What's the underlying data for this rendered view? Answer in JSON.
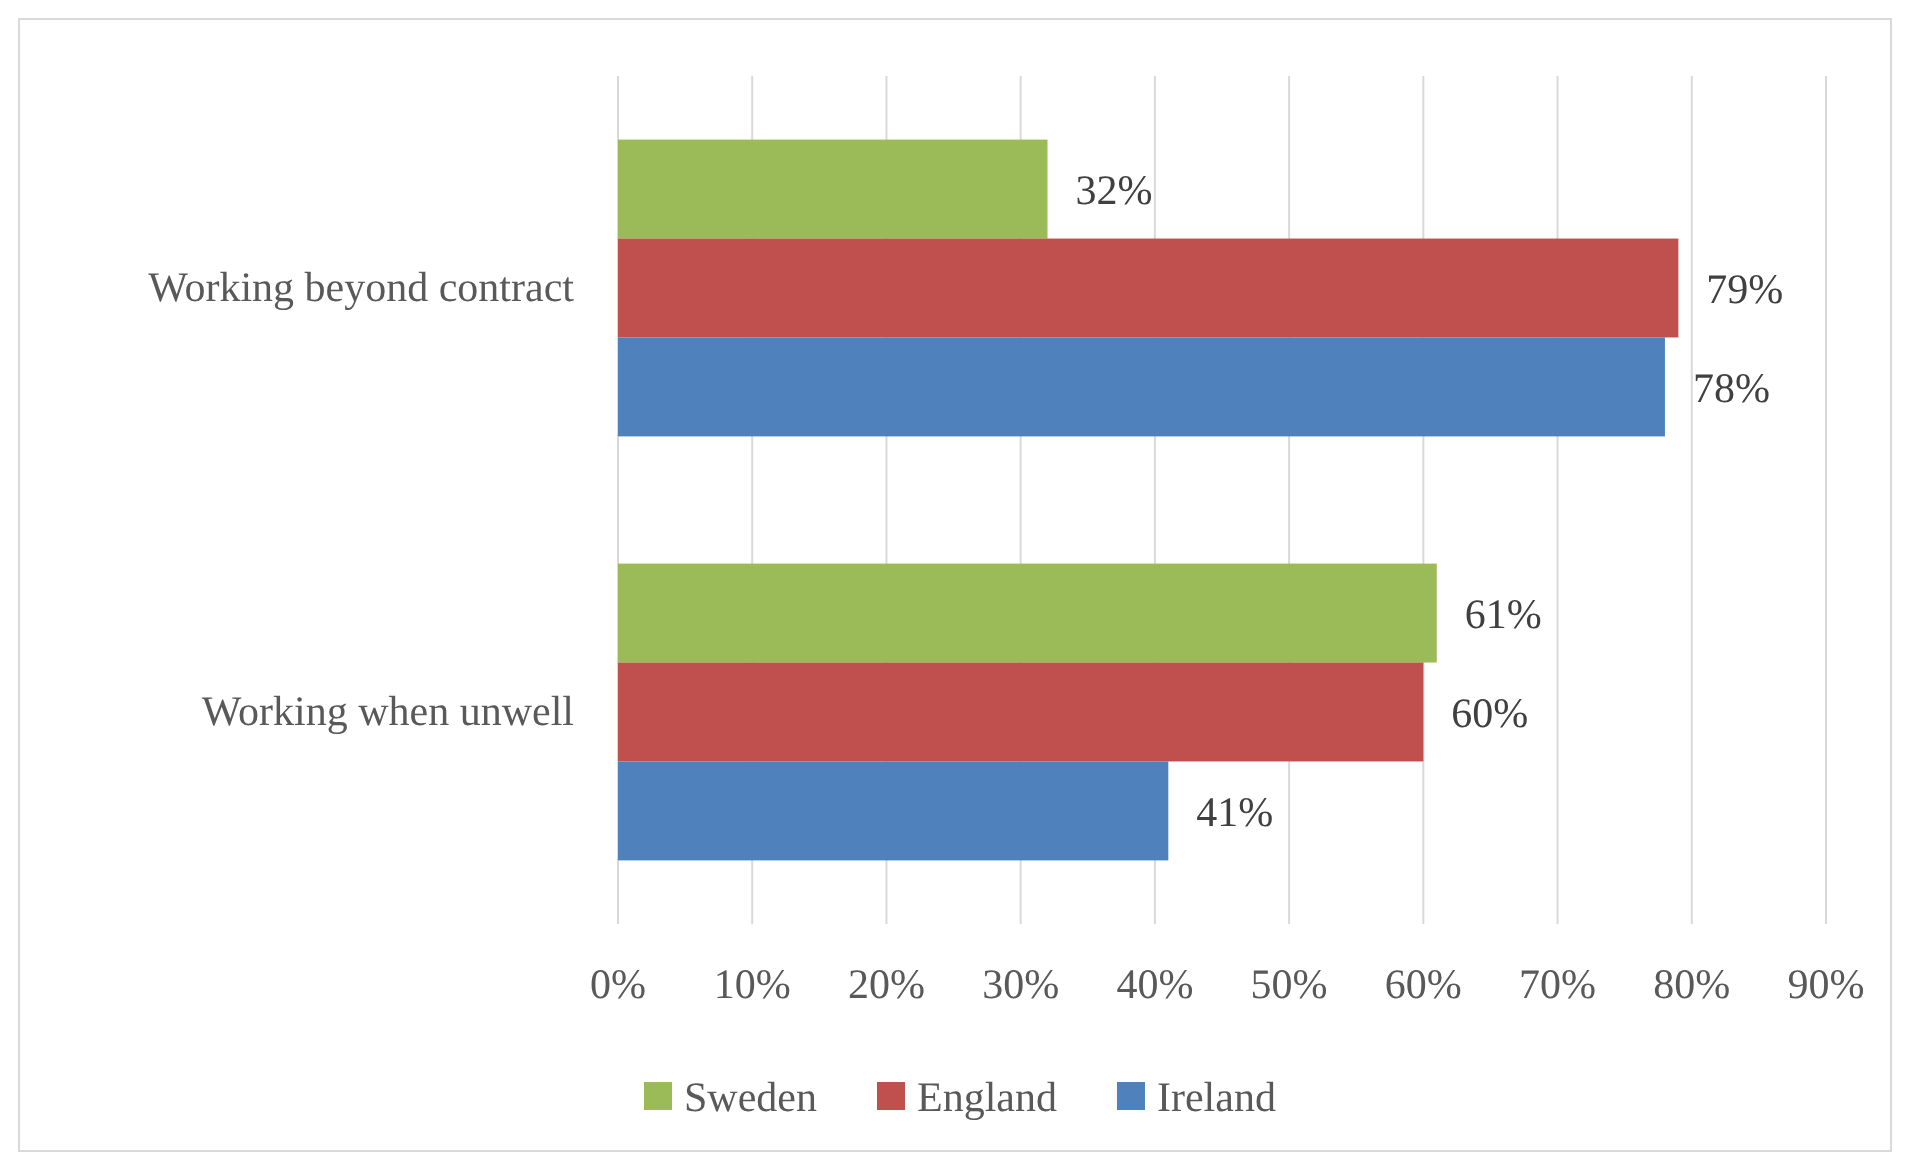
{
  "chart_data": {
    "type": "bar",
    "orientation": "horizontal",
    "categories": [
      "Working beyond contract",
      "Working when unwell"
    ],
    "series": [
      {
        "name": "Sweden",
        "color": "#9bbb59",
        "values": [
          32,
          61
        ],
        "value_labels": [
          "32%",
          "61%"
        ]
      },
      {
        "name": "England",
        "color": "#c0504d",
        "values": [
          79,
          60
        ],
        "value_labels": [
          "79%",
          "60%"
        ]
      },
      {
        "name": "Ireland",
        "color": "#4f81bd",
        "values": [
          78,
          41
        ],
        "value_labels": [
          "78%",
          "41%"
        ]
      }
    ],
    "xlim": [
      0,
      90
    ],
    "xticks": [
      {
        "value": 0,
        "label": "0%"
      },
      {
        "value": 10,
        "label": "10%"
      },
      {
        "value": 20,
        "label": "20%"
      },
      {
        "value": 30,
        "label": "30%"
      },
      {
        "value": 40,
        "label": "40%"
      },
      {
        "value": 50,
        "label": "50%"
      },
      {
        "value": 60,
        "label": "60%"
      },
      {
        "value": 70,
        "label": "70%"
      },
      {
        "value": 80,
        "label": "80%"
      },
      {
        "value": 90,
        "label": "90%"
      }
    ],
    "grid": "x",
    "legend": "bottom"
  }
}
